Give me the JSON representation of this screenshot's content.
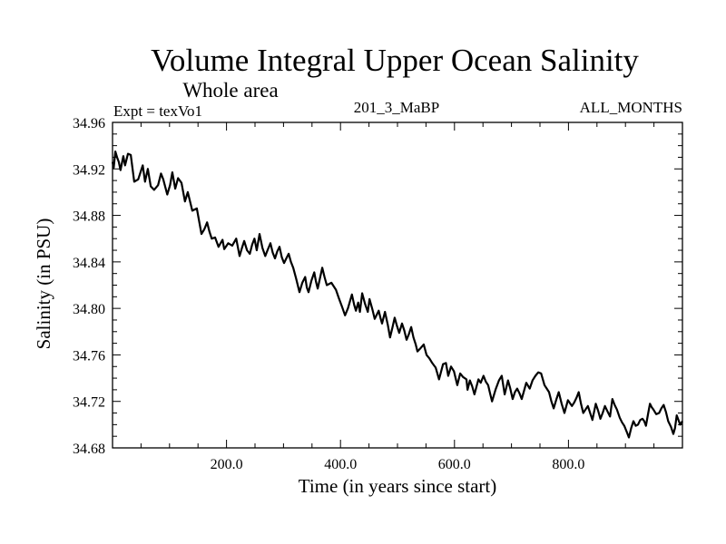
{
  "chart_data": {
    "type": "line",
    "title": "Volume Integral Upper Ocean Salinity",
    "subtitle": "Whole area",
    "annotations": {
      "left": "Expt = texVo1",
      "center": "201_3_MaBP",
      "right": "ALL_MONTHS"
    },
    "xlabel": "Time (in years since start)",
    "ylabel": "Salinity (in PSU)",
    "xlim": [
      0,
      1000
    ],
    "ylim": [
      34.68,
      34.96
    ],
    "x_ticks_major": [
      200,
      400,
      600,
      800
    ],
    "x_tick_labels": [
      "200.0",
      "400.0",
      "600.0",
      "800.0"
    ],
    "x_minor_step": 50,
    "y_ticks_major": [
      34.68,
      34.72,
      34.76,
      34.8,
      34.84,
      34.88,
      34.92,
      34.96
    ],
    "y_tick_labels": [
      "34.68",
      "34.72",
      "34.76",
      "34.80",
      "34.84",
      "34.88",
      "34.92",
      "34.96"
    ],
    "y_minor_step": 0.01,
    "grid": false,
    "legend": "none",
    "line_color": "#000000",
    "series": [
      {
        "name": "Salinity",
        "x": [
          0,
          2,
          5,
          8,
          11,
          14,
          19,
          22,
          27,
          32,
          38,
          45,
          53,
          57,
          62,
          67,
          73,
          80,
          85,
          89,
          96,
          101,
          105,
          110,
          115,
          121,
          127,
          132,
          140,
          148,
          156,
          161,
          166,
          170,
          174,
          180,
          186,
          193,
          196,
          203,
          210,
          217,
          223,
          227,
          231,
          236,
          241,
          245,
          249,
          253,
          258,
          263,
          268,
          272,
          277,
          281,
          285,
          289,
          293,
          297,
          301,
          305,
          309,
          313,
          317,
          322,
          328,
          333,
          338,
          341,
          344,
          349,
          354,
          357,
          360,
          364,
          368,
          372,
          376,
          384,
          392,
          397,
          403,
          408,
          413,
          420,
          424,
          427,
          431,
          434,
          438,
          443,
          448,
          451,
          456,
          460,
          464,
          467,
          470,
          473,
          478,
          483,
          487,
          491,
          495,
          499,
          503,
          508,
          512,
          516,
          520,
          524,
          528,
          532,
          535,
          541,
          546,
          551,
          556,
          561,
          567,
          573,
          580,
          585,
          589,
          594,
          599,
          605,
          610,
          615,
          621,
          623,
          627,
          631,
          635,
          642,
          646,
          651,
          655,
          659,
          662,
          666,
          672,
          678,
          683,
          688,
          694,
          698,
          702,
          706,
          710,
          714,
          718,
          722,
          726,
          732,
          737,
          742,
          747,
          752,
          758,
          762,
          766,
          770,
          774,
          779,
          783,
          788,
          793,
          799,
          806,
          810,
          814,
          818,
          822,
          826,
          830,
          834,
          838,
          842,
          848,
          852,
          856,
          860,
          864,
          869,
          873,
          877,
          881,
          885,
          890,
          894,
          898,
          902,
          906,
          910,
          914,
          918,
          922,
          926,
          930,
          933,
          936,
          940,
          943,
          946,
          949,
          954,
          959,
          963,
          967,
          971,
          975,
          980,
          984,
          987,
          990,
          993,
          996,
          1000
        ],
        "y": [
          34.926,
          34.921,
          34.935,
          34.93,
          34.926,
          34.919,
          34.931,
          34.923,
          34.933,
          34.932,
          34.909,
          34.911,
          34.923,
          34.909,
          34.92,
          34.905,
          34.902,
          34.906,
          34.916,
          34.911,
          34.898,
          34.906,
          34.917,
          34.903,
          34.912,
          34.908,
          34.892,
          34.9,
          34.884,
          34.886,
          34.864,
          34.868,
          34.874,
          34.866,
          34.86,
          34.861,
          34.853,
          34.859,
          34.851,
          34.856,
          34.854,
          34.86,
          34.845,
          34.852,
          34.858,
          34.85,
          34.847,
          34.855,
          34.86,
          34.85,
          34.864,
          34.852,
          34.845,
          34.85,
          34.856,
          34.848,
          34.843,
          34.849,
          34.853,
          34.844,
          34.839,
          34.843,
          34.847,
          34.84,
          34.835,
          34.826,
          34.814,
          34.822,
          34.827,
          34.818,
          34.814,
          34.824,
          34.831,
          34.823,
          34.817,
          34.826,
          34.835,
          34.827,
          34.82,
          34.822,
          34.816,
          34.809,
          34.801,
          34.794,
          34.8,
          34.812,
          34.803,
          34.798,
          34.805,
          34.797,
          34.813,
          34.804,
          34.797,
          34.808,
          34.799,
          34.791,
          34.795,
          34.798,
          34.792,
          34.787,
          34.797,
          34.786,
          34.775,
          34.783,
          34.792,
          34.785,
          34.779,
          34.787,
          34.781,
          34.773,
          34.778,
          34.784,
          34.775,
          34.769,
          34.763,
          34.766,
          34.769,
          34.76,
          34.757,
          34.753,
          34.749,
          34.739,
          34.752,
          34.753,
          34.742,
          34.75,
          34.746,
          34.734,
          34.744,
          34.741,
          34.739,
          34.73,
          34.738,
          34.733,
          34.726,
          34.739,
          34.736,
          34.742,
          34.737,
          34.734,
          34.728,
          34.72,
          34.73,
          34.738,
          34.742,
          34.726,
          34.738,
          34.731,
          34.722,
          34.728,
          34.731,
          34.727,
          34.722,
          34.729,
          34.736,
          34.731,
          34.738,
          34.742,
          34.745,
          34.744,
          34.734,
          34.731,
          34.728,
          34.72,
          34.714,
          34.722,
          34.728,
          34.718,
          34.71,
          34.721,
          34.716,
          34.719,
          34.723,
          34.728,
          34.718,
          34.71,
          34.713,
          34.716,
          34.71,
          34.704,
          34.718,
          34.712,
          34.705,
          34.71,
          34.716,
          34.711,
          34.707,
          34.722,
          34.717,
          34.713,
          34.706,
          34.702,
          34.699,
          34.694,
          34.689,
          34.697,
          34.703,
          34.699,
          34.7,
          34.704,
          34.705,
          34.703,
          34.699,
          34.71,
          34.718,
          34.715,
          34.713,
          34.709,
          34.71,
          34.714,
          34.717,
          34.711,
          34.703,
          34.698,
          34.692,
          34.697,
          34.708,
          34.704,
          34.7,
          34.703
        ]
      }
    ]
  }
}
